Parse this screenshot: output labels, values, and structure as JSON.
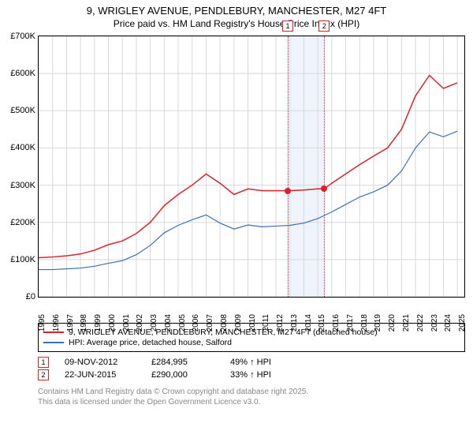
{
  "title_line1": "9, WRIGLEY AVENUE, PENDLEBURY, MANCHESTER, M27 4FT",
  "title_line2": "Price paid vs. HM Land Registry's House Price Index (HPI)",
  "chart": {
    "type": "line",
    "x_min": 1995,
    "x_max": 2025.5,
    "y_min": 0,
    "y_max": 700000,
    "y_ticks": [
      0,
      100000,
      200000,
      300000,
      400000,
      500000,
      600000,
      700000
    ],
    "y_tick_labels": [
      "£0",
      "£100K",
      "£200K",
      "£300K",
      "£400K",
      "£500K",
      "£600K",
      "£700K"
    ],
    "x_ticks": [
      1995,
      1996,
      1997,
      1998,
      1999,
      2000,
      2001,
      2002,
      2003,
      2004,
      2005,
      2006,
      2007,
      2008,
      2009,
      2010,
      2011,
      2012,
      2013,
      2014,
      2015,
      2016,
      2017,
      2018,
      2019,
      2020,
      2021,
      2022,
      2023,
      2024,
      2025
    ],
    "grid_color": "#d8d8d8",
    "background_color": "#ffffff",
    "axis_color": "#000000",
    "shade_band": {
      "x_start": 2012.85,
      "x_end": 2015.47,
      "color": "#eef3fc"
    },
    "series": [
      {
        "name": "property",
        "label": "9, WRIGLEY AVENUE, PENDLEBURY, MANCHESTER, M27 4FT (detached house)",
        "color": "#d8232a",
        "line_width": 1.5,
        "points": [
          [
            1995,
            105000
          ],
          [
            1996,
            107000
          ],
          [
            1997,
            110000
          ],
          [
            1998,
            115000
          ],
          [
            1999,
            125000
          ],
          [
            2000,
            140000
          ],
          [
            2001,
            150000
          ],
          [
            2002,
            170000
          ],
          [
            2003,
            200000
          ],
          [
            2004,
            245000
          ],
          [
            2005,
            275000
          ],
          [
            2006,
            300000
          ],
          [
            2007,
            330000
          ],
          [
            2008,
            305000
          ],
          [
            2009,
            275000
          ],
          [
            2010,
            290000
          ],
          [
            2011,
            285000
          ],
          [
            2012,
            285000
          ],
          [
            2012.85,
            284995
          ],
          [
            2013,
            285000
          ],
          [
            2014,
            287000
          ],
          [
            2015,
            290000
          ],
          [
            2015.47,
            290000
          ],
          [
            2016,
            305000
          ],
          [
            2017,
            330000
          ],
          [
            2018,
            355000
          ],
          [
            2019,
            378000
          ],
          [
            2020,
            400000
          ],
          [
            2021,
            450000
          ],
          [
            2022,
            540000
          ],
          [
            2023,
            595000
          ],
          [
            2024,
            560000
          ],
          [
            2025,
            575000
          ]
        ]
      },
      {
        "name": "hpi",
        "label": "HPI: Average price, detached house, Salford",
        "color": "#3d6fb5",
        "line_width": 1.2,
        "points": [
          [
            1995,
            73000
          ],
          [
            1996,
            73000
          ],
          [
            1997,
            75000
          ],
          [
            1998,
            77000
          ],
          [
            1999,
            82000
          ],
          [
            2000,
            90000
          ],
          [
            2001,
            97000
          ],
          [
            2002,
            113000
          ],
          [
            2003,
            138000
          ],
          [
            2004,
            172000
          ],
          [
            2005,
            192000
          ],
          [
            2006,
            207000
          ],
          [
            2007,
            220000
          ],
          [
            2008,
            198000
          ],
          [
            2009,
            182000
          ],
          [
            2010,
            193000
          ],
          [
            2011,
            188000
          ],
          [
            2012,
            190000
          ],
          [
            2013,
            192000
          ],
          [
            2014,
            198000
          ],
          [
            2015,
            210000
          ],
          [
            2016,
            228000
          ],
          [
            2017,
            248000
          ],
          [
            2018,
            268000
          ],
          [
            2019,
            282000
          ],
          [
            2020,
            300000
          ],
          [
            2021,
            338000
          ],
          [
            2022,
            400000
          ],
          [
            2023,
            443000
          ],
          [
            2024,
            430000
          ],
          [
            2025,
            445000
          ]
        ]
      }
    ],
    "sale_markers": [
      {
        "n": "1",
        "x": 2012.85,
        "y": 284995,
        "color": "#d8232a"
      },
      {
        "n": "2",
        "x": 2015.47,
        "y": 290000,
        "color": "#d8232a"
      }
    ]
  },
  "legend": {
    "items": [
      {
        "color": "#d8232a",
        "text": "9, WRIGLEY AVENUE, PENDLEBURY, MANCHESTER, M27 4FT (detached house)"
      },
      {
        "color": "#3d6fb5",
        "text": "HPI: Average price, detached house, Salford"
      }
    ]
  },
  "sales": [
    {
      "n": "1",
      "date": "09-NOV-2012",
      "price": "£284,995",
      "delta": "49% ↑ HPI",
      "color": "#d8232a"
    },
    {
      "n": "2",
      "date": "22-JUN-2015",
      "price": "£290,000",
      "delta": "33% ↑ HPI",
      "color": "#d8232a"
    }
  ],
  "footer_line1": "Contains HM Land Registry data © Crown copyright and database right 2025.",
  "footer_line2": "This data is licensed under the Open Government Licence v3.0.",
  "fonts": {
    "title_size_pt": 13,
    "subtitle_size_pt": 12,
    "tick_size_pt": 11,
    "legend_size_pt": 10.5,
    "footer_size_pt": 10
  }
}
